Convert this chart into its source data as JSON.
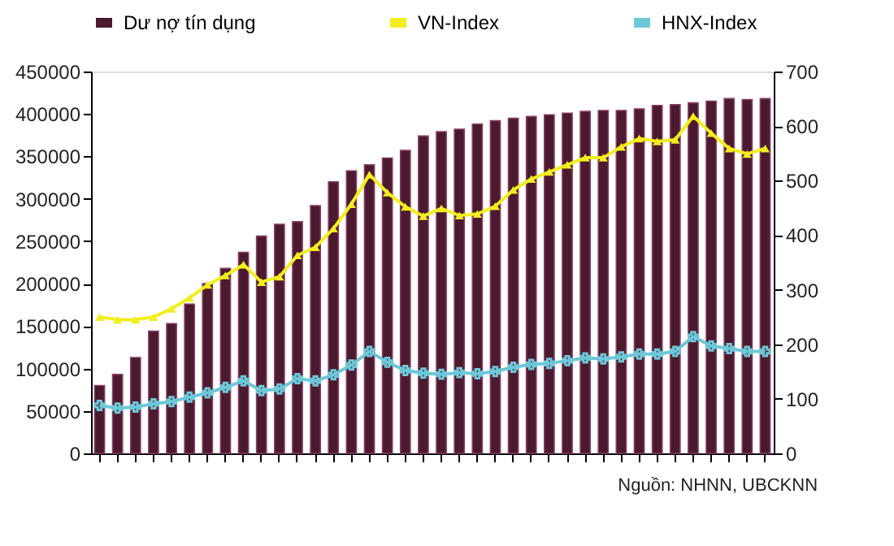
{
  "chart_data": {
    "type": "bar",
    "categories": [
      null,
      null,
      null,
      null,
      null,
      null,
      null,
      null,
      null,
      null,
      null,
      null,
      null,
      null,
      null,
      null,
      null,
      null,
      null,
      null,
      null,
      null,
      null,
      null,
      null,
      null,
      null,
      null,
      null,
      null,
      null,
      null,
      null,
      null,
      null,
      null,
      null,
      null
    ],
    "series": [
      {
        "name": "Dư nợ tín dụng",
        "color": "#4a1a2e",
        "values": [
          80000,
          93000,
          113000,
          144000,
          153000,
          176000,
          200000,
          218000,
          237000,
          256000,
          270000,
          273000,
          292000,
          320000,
          333000,
          340000,
          348000,
          357000,
          374000,
          379000,
          382000,
          388000,
          392000,
          395000,
          397000,
          399000,
          401000,
          403000,
          404000,
          404000,
          406000,
          410000,
          411000,
          413000,
          415000,
          418000,
          417000,
          418000
        ]
      },
      {
        "name": "VN-Index",
        "type": "line",
        "axis": "y2",
        "color": "#f2ee1e",
        "marker": "triangle",
        "values": [
          250,
          245,
          245,
          250,
          265,
          285,
          309,
          326,
          346,
          314,
          324,
          363,
          378,
          412,
          457,
          511,
          478,
          452,
          435,
          449,
          436,
          439,
          453,
          483,
          503,
          516,
          529,
          542,
          542,
          562,
          577,
          572,
          575,
          618,
          587,
          559,
          549,
          559
        ]
      },
      {
        "name": "HNX-Index",
        "type": "line",
        "axis": "y2",
        "color": "#6cc8d8",
        "marker": "cross",
        "values": [
          88,
          83,
          85,
          91,
          95,
          103,
          111,
          121,
          133,
          115,
          118,
          137,
          133,
          144,
          162,
          187,
          167,
          152,
          147,
          145,
          148,
          146,
          150,
          158,
          163,
          165,
          170,
          175,
          173,
          177,
          182,
          182,
          187,
          214,
          197,
          192,
          187,
          187
        ]
      }
    ],
    "ylim": [
      0,
      450000
    ],
    "yticks": [
      0,
      50000,
      100000,
      150000,
      200000,
      250000,
      300000,
      350000,
      400000,
      450000
    ],
    "y2lim": [
      0,
      700
    ],
    "y2ticks": [
      0,
      100,
      200,
      300,
      400,
      500,
      600,
      700
    ],
    "tick_labels": "y",
    "grid": false,
    "legend": "top",
    "line_style": "solid",
    "annotations": [
      "Nguồn: NHNN, UBCKNN"
    ]
  }
}
